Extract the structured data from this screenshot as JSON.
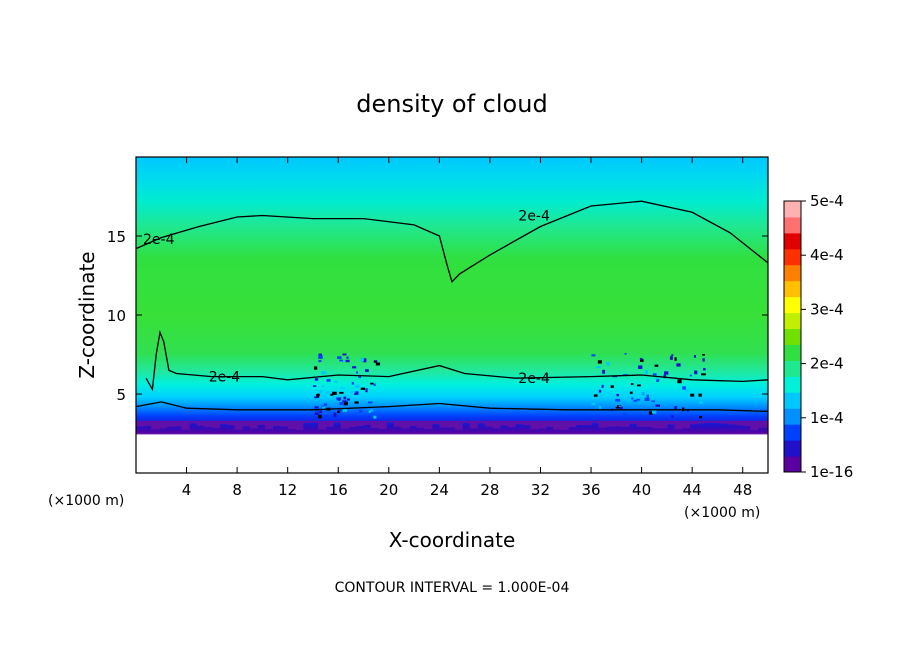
{
  "chart_data": {
    "type": "heatmap",
    "title": "density of cloud",
    "xlabel": "X-coordinate",
    "ylabel": "Z-coordinate",
    "x_unit": "(×1000 m)",
    "x_unit_right": "(×1000 m)",
    "xlim": [
      0,
      50
    ],
    "ylim": [
      0,
      20
    ],
    "x_ticks": [
      "4",
      "8",
      "12",
      "16",
      "20",
      "24",
      "28",
      "32",
      "36",
      "40",
      "44",
      "48"
    ],
    "x_tick_values": [
      4,
      8,
      12,
      16,
      20,
      24,
      28,
      32,
      36,
      40,
      44,
      48
    ],
    "y_ticks": [
      "5",
      "10",
      "15"
    ],
    "y_tick_values": [
      5,
      10,
      15
    ],
    "colorbar": {
      "labels": [
        "5e-4",
        "4e-4",
        "3e-4",
        "2e-4",
        "1e-4",
        "1e-16"
      ],
      "values": [
        0.0005,
        0.0004,
        0.0003,
        0.0002,
        0.0001,
        1e-16
      ],
      "colors": [
        "#5a00a0",
        "#2010c8",
        "#0040ff",
        "#0090ff",
        "#00c8ff",
        "#00f0d8",
        "#20e890",
        "#30e040",
        "#70e000",
        "#c0f000",
        "#ffff00",
        "#ffc000",
        "#ff8000",
        "#ff3000",
        "#e00000",
        "#ff7070",
        "#ffb0b0"
      ]
    },
    "contours": [
      {
        "level": 0.0002,
        "labels": [
          "2e-4",
          "2e-4"
        ],
        "label_positions_data": [
          [
            1.8,
            14.8
          ],
          [
            31.5,
            16.3
          ]
        ],
        "points": [
          [
            0,
            14.2
          ],
          [
            2,
            14.9
          ],
          [
            5,
            15.6
          ],
          [
            8,
            16.2
          ],
          [
            10,
            16.3
          ],
          [
            14,
            16.1
          ],
          [
            18,
            16.1
          ],
          [
            22,
            15.7
          ],
          [
            24,
            15.0
          ],
          [
            24.6,
            13.2
          ],
          [
            25.0,
            12.1
          ],
          [
            25.6,
            12.6
          ],
          [
            28,
            13.8
          ],
          [
            32,
            15.6
          ],
          [
            36,
            16.9
          ],
          [
            40,
            17.2
          ],
          [
            44,
            16.5
          ],
          [
            47,
            15.2
          ],
          [
            50,
            13.3
          ]
        ]
      },
      {
        "level": 0.0002,
        "labels": [
          "2e-4",
          "2e-4"
        ],
        "label_positions_data": [
          [
            7.0,
            6.1
          ],
          [
            31.5,
            6.0
          ]
        ],
        "points": [
          [
            0.8,
            6.0
          ],
          [
            1.3,
            5.3
          ],
          [
            1.6,
            7.5
          ],
          [
            1.9,
            8.9
          ],
          [
            2.2,
            8.3
          ],
          [
            2.6,
            6.5
          ],
          [
            3.2,
            6.3
          ],
          [
            6,
            6.1
          ],
          [
            10,
            6.1
          ],
          [
            12,
            5.9
          ],
          [
            16,
            6.2
          ],
          [
            20,
            6.1
          ],
          [
            24,
            6.8
          ],
          [
            26,
            6.3
          ],
          [
            30,
            6.0
          ],
          [
            36,
            6.1
          ],
          [
            40,
            6.2
          ],
          [
            44,
            5.9
          ],
          [
            48,
            5.8
          ],
          [
            50,
            5.9
          ]
        ]
      },
      {
        "level": 0.0001,
        "labels": [],
        "label_positions_data": [],
        "points": [
          [
            0,
            4.2
          ],
          [
            2,
            4.5
          ],
          [
            4,
            4.1
          ],
          [
            8,
            4.0
          ],
          [
            14,
            4.0
          ],
          [
            20,
            4.2
          ],
          [
            24,
            4.4
          ],
          [
            28,
            4.1
          ],
          [
            34,
            4.0
          ],
          [
            40,
            4.0
          ],
          [
            46,
            4.0
          ],
          [
            50,
            3.9
          ]
        ]
      }
    ],
    "field_regions": [
      {
        "name": "upper-cyan",
        "z_range": [
          17,
          20
        ],
        "value": 0.00015
      },
      {
        "name": "main-green",
        "z_range": [
          6.5,
          15.5
        ],
        "value": 0.00024
      },
      {
        "name": "lower-blue",
        "z_range": [
          3.4,
          4.2
        ],
        "value": 6e-05
      },
      {
        "name": "base-violet",
        "z_range": [
          2.8,
          3.4
        ],
        "value": 1e-16
      }
    ],
    "note": "CONTOUR INTERVAL = 1.000E-04"
  }
}
